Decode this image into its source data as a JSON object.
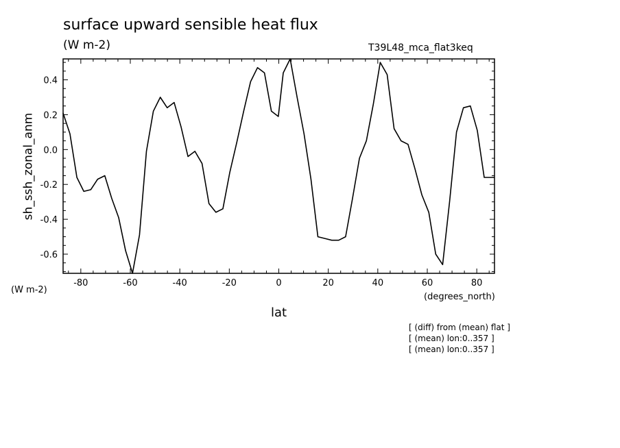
{
  "header": {
    "title": "surface upward sensible heat flux",
    "units": "(W m-2)",
    "run": "T39L48_mca_flat3keq"
  },
  "axis_notes": {
    "y_units": "(W m-2)",
    "x_units": "(degrees_north)"
  },
  "footnotes": [
    "[ (diff) from (mean) flat ]",
    "[ (mean) lon:0..357 ]",
    "[ (mean) lon:0..357 ]"
  ],
  "chart_data": {
    "type": "line",
    "title": "surface upward sensible heat flux",
    "xlabel": "lat",
    "ylabel": "sh_ssh_zonal_anm",
    "xlim": [
      -87.16,
      87.16
    ],
    "ylim": [
      -0.71,
      0.52
    ],
    "xticks": [
      -80,
      -60,
      -40,
      -20,
      0,
      20,
      40,
      60,
      80
    ],
    "yticks": [
      -0.6,
      -0.4,
      -0.2,
      0.0,
      0.2,
      0.4
    ],
    "ytick_labels": [
      "-0.6",
      "-0.4",
      "-0.2",
      "0.0",
      "0.2",
      "0.4"
    ],
    "grid": false,
    "line_color": "#000000",
    "series": [
      {
        "x": [
          -87.2,
          -84.4,
          -81.6,
          -78.8,
          -76.0,
          -73.2,
          -70.3,
          -67.5,
          -64.7,
          -61.9,
          -59.1,
          -56.3,
          -53.5,
          -50.7,
          -47.9,
          -45.1,
          -42.3,
          -39.5,
          -36.7,
          -33.9,
          -31.0,
          -28.2,
          -25.4,
          -22.6,
          -19.8,
          -17.0,
          -14.2,
          -11.4,
          -8.6,
          -5.8,
          -3.0,
          -0.2,
          1.8,
          4.6,
          7.4,
          10.2,
          13.0,
          15.8,
          18.6,
          21.4,
          24.2,
          27.0,
          29.8,
          32.6,
          35.4,
          38.2,
          41.0,
          43.8,
          46.6,
          49.4,
          52.2,
          55.0,
          57.8,
          60.6,
          63.4,
          66.2,
          69.0,
          71.8,
          74.6,
          77.4,
          80.2,
          83.0,
          85.8,
          87.2
        ],
        "values": [
          0.21,
          0.09,
          -0.16,
          -0.24,
          -0.23,
          -0.17,
          -0.15,
          -0.28,
          -0.39,
          -0.58,
          -0.71,
          -0.49,
          -0.01,
          0.22,
          0.3,
          0.24,
          0.27,
          0.13,
          -0.04,
          -0.01,
          -0.08,
          -0.31,
          -0.36,
          -0.34,
          -0.13,
          0.04,
          0.22,
          0.39,
          0.47,
          0.44,
          0.22,
          0.19,
          0.44,
          0.52,
          0.3,
          0.09,
          -0.17,
          -0.5,
          -0.51,
          -0.52,
          -0.52,
          -0.5,
          -0.28,
          -0.05,
          0.05,
          0.26,
          0.5,
          0.43,
          0.12,
          0.05,
          0.03,
          -0.11,
          -0.26,
          -0.36,
          -0.6,
          -0.66,
          -0.3,
          0.1,
          0.24,
          0.25,
          0.11,
          -0.16,
          -0.16,
          -0.16
        ]
      }
    ]
  }
}
